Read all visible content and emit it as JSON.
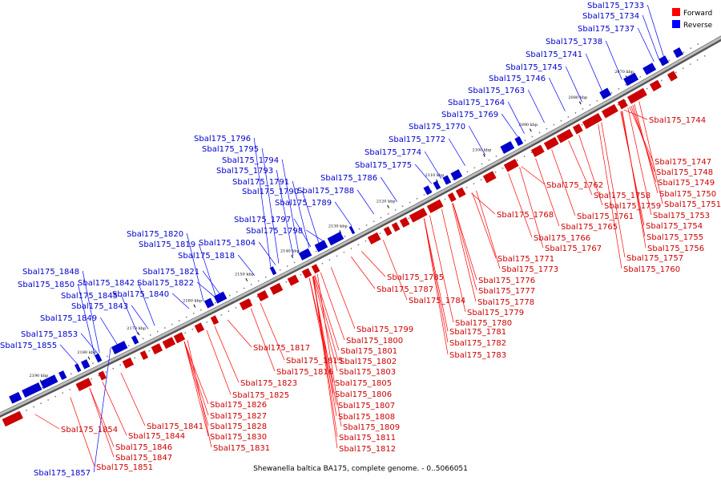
{
  "caption": "Shewanella baltica BA175, complete genome. - 0..5066051",
  "legend": {
    "forward_label": "Forward",
    "reverse_label": "Reverse",
    "forward_color": "#ff0000",
    "reverse_color": "#0000ff"
  },
  "ticks": [
    "2070 kbp",
    "2080 kbp",
    "2090 kbp",
    "2100 kbp",
    "2110 kbp",
    "2120 kbp",
    "2130 kbp",
    "2140 kbp",
    "2150 kbp",
    "2160 kbp",
    "2170 kbp",
    "2180 kbp",
    "2190 kbp"
  ],
  "reverse_labels": [
    "Sbal175_1733",
    "Sbal175_1734",
    "Sbal175_1737",
    "Sbal175_1738",
    "Sbal175_1741",
    "Sbal175_1745",
    "Sbal175_1746",
    "Sbal175_1763",
    "Sbal175_1764",
    "Sbal175_1769",
    "Sbal175_1770",
    "Sbal175_1772",
    "Sbal175_1774",
    "Sbal175_1775",
    "Sbal175_1786",
    "Sbal175_1788",
    "Sbal175_1789",
    "Sbal175_1790",
    "Sbal175_1791",
    "Sbal175_1793",
    "Sbal175_1794",
    "Sbal175_1795",
    "Sbal175_1796",
    "Sbal175_1797",
    "Sbal175_1798",
    "Sbal175_1804",
    "Sbal175_1818",
    "Sbal175_1819",
    "Sbal175_1820",
    "Sbal175_1821",
    "Sbal175_1822",
    "Sbal175_1840",
    "Sbal175_1842",
    "Sbal175_1843",
    "Sbal175_1845",
    "Sbal175_1848",
    "Sbal175_1849",
    "Sbal175_1850",
    "Sbal175_1853",
    "Sbal175_1855",
    "Sbal175_1857"
  ],
  "forward_labels": [
    "Sbal175_1744",
    "Sbal175_1747",
    "Sbal175_1748",
    "Sbal175_1749",
    "Sbal175_1750",
    "Sbal175_1751",
    "Sbal175_1753",
    "Sbal175_1754",
    "Sbal175_1755",
    "Sbal175_1756",
    "Sbal175_1757",
    "Sbal175_1758",
    "Sbal175_1759",
    "Sbal175_1760",
    "Sbal175_1761",
    "Sbal175_1762",
    "Sbal175_1765",
    "Sbal175_1766",
    "Sbal175_1767",
    "Sbal175_1768",
    "Sbal175_1771",
    "Sbal175_1773",
    "Sbal175_1776",
    "Sbal175_1777",
    "Sbal175_1778",
    "Sbal175_1779",
    "Sbal175_1780",
    "Sbal175_1781",
    "Sbal175_1782",
    "Sbal175_1783",
    "Sbal175_1784",
    "Sbal175_1785",
    "Sbal175_1787",
    "Sbal175_1799",
    "Sbal175_1800",
    "Sbal175_1801",
    "Sbal175_1802",
    "Sbal175_1803",
    "Sbal175_1805",
    "Sbal175_1806",
    "Sbal175_1807",
    "Sbal175_1808",
    "Sbal175_1809",
    "Sbal175_1811",
    "Sbal175_1812",
    "Sbal175_1815",
    "Sbal175_1816",
    "Sbal175_1817",
    "Sbal175_1823",
    "Sbal175_1825",
    "Sbal175_1826",
    "Sbal175_1827",
    "Sbal175_1828",
    "Sbal175_1830",
    "Sbal175_1831",
    "Sbal175_1841",
    "Sbal175_1844",
    "Sbal175_1846",
    "Sbal175_1847",
    "Sbal175_1851",
    "Sbal175_1854"
  ]
}
